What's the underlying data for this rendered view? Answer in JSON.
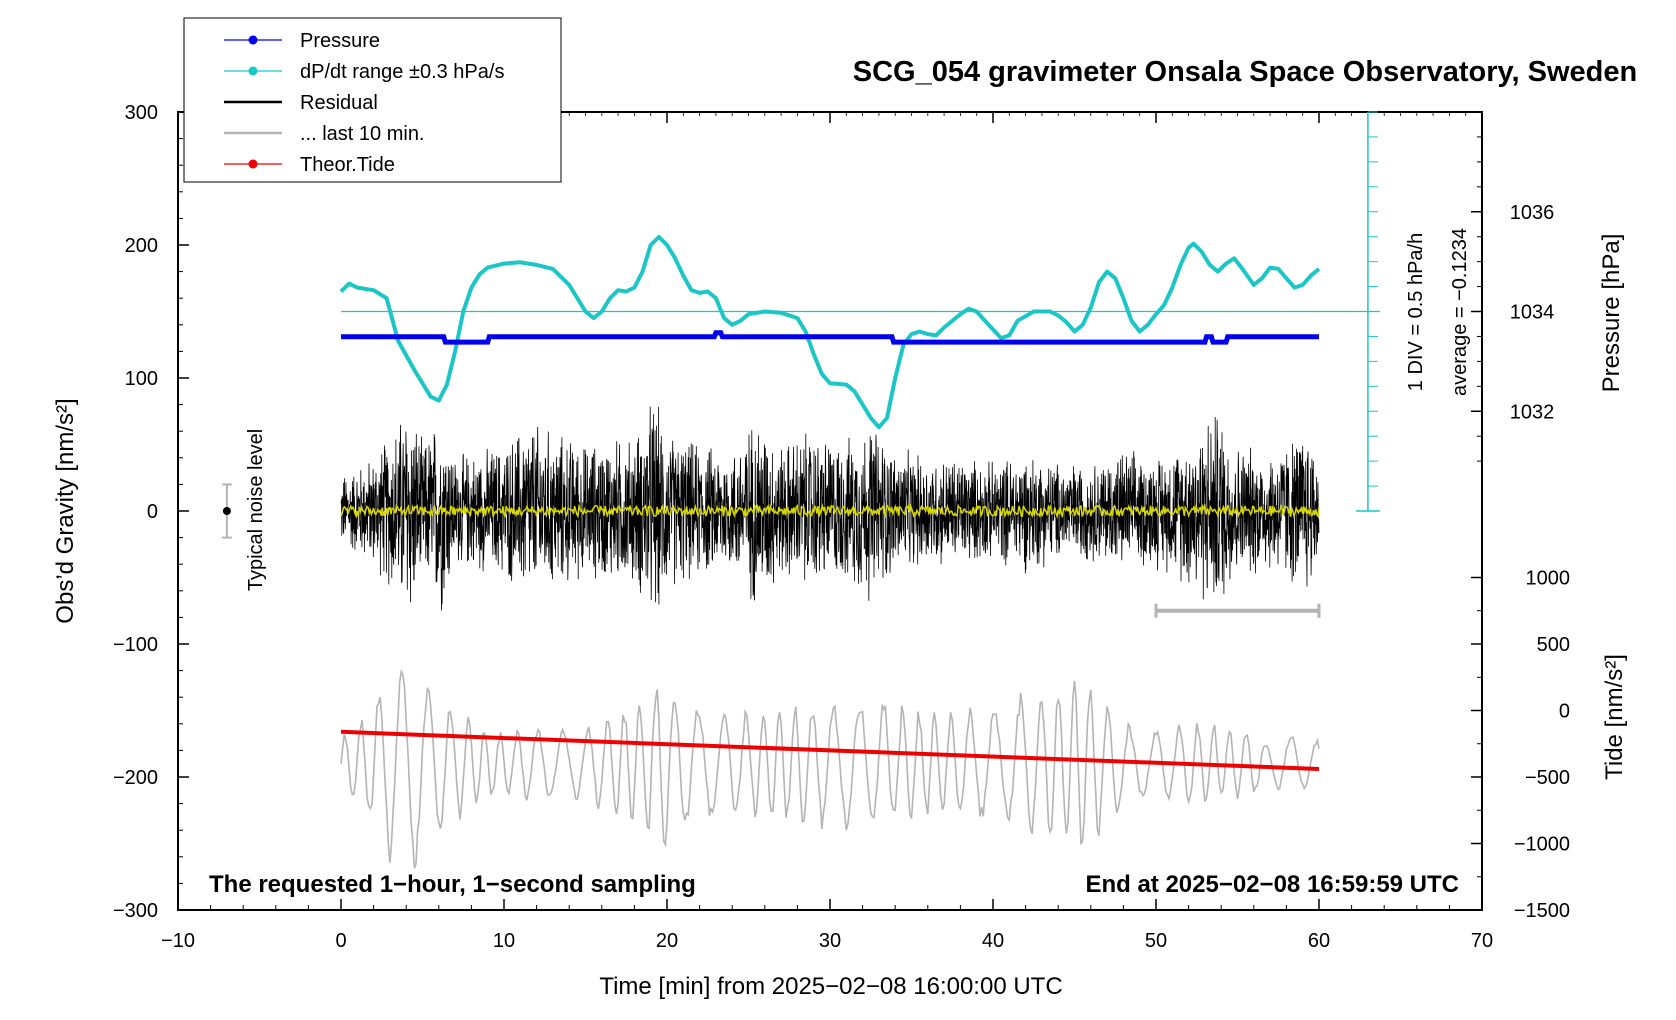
{
  "chart_data": {
    "type": "line",
    "title": "SCG_054 gravimeter Onsala Space Observatory, Sweden",
    "xlabel": "Time [min] from 2025−02−08 16:00:00 UTC",
    "ylabel": "Obs’d Gravity [nm/s²]",
    "ylabel_right_top": "Pressure [hPa]",
    "ylabel_right_bottom": "Tide [nm/s²]",
    "xlim": [
      -10,
      70
    ],
    "ylim": [
      -300,
      300
    ],
    "x_ticks": [
      "−10",
      "0",
      "10",
      "20",
      "30",
      "40",
      "50",
      "60",
      "70"
    ],
    "x_tick_values": [
      -10,
      0,
      10,
      20,
      30,
      40,
      50,
      60,
      70
    ],
    "y_ticks": [
      "300",
      "200",
      "100",
      "0",
      "−100",
      "−200",
      "−300"
    ],
    "y_tick_values": [
      300,
      200,
      100,
      0,
      -100,
      -200,
      -300
    ],
    "pressure_ticks": [
      "1036",
      "1034",
      "1032"
    ],
    "pressure_tick_values": [
      1036,
      1034,
      1032
    ],
    "pressure_scale": {
      "value_at_gravity_150": 1034,
      "gravity_units_per_hpa": 37.5
    },
    "tide_ticks": [
      "1000",
      "500",
      "0",
      "−500",
      "−1000",
      "−1500"
    ],
    "tide_tick_values": [
      1000,
      500,
      0,
      -500,
      -1000,
      -1500
    ],
    "tide_scale": {
      "value_at_gravity_minus_300": -1500,
      "gravity_units_per_tide_unit": 0.1
    },
    "legend": {
      "position": "top-left",
      "entries": [
        {
          "label": "Pressure",
          "color": "#0000ee",
          "marker": true
        },
        {
          "label": "dP/dt range ±0.3 hPa/s",
          "color": "#1cc6c6",
          "marker": true
        },
        {
          "label": "Residual",
          "color": "#000000",
          "marker": false
        },
        {
          "label": "... last 10 min.",
          "color": "#b4b4b4",
          "marker": false
        },
        {
          "label": "Theor.Tide",
          "color": "#ee0000",
          "marker": true
        }
      ]
    },
    "annotations": {
      "noise_label": "Typical noise level",
      "noise_bar": {
        "x": -7,
        "y": 0,
        "half_range": 20
      },
      "dpdt_div_label": "1 DIV = 0.5 hPa/h",
      "dpdt_average_label": "average = −0.1234",
      "dpdt_axis": {
        "x": 63,
        "top": 300,
        "bottom": 0,
        "ref_level": 150
      },
      "footnote_left": "The requested 1−hour, 1−second sampling",
      "footnote_right": "End at 2025−02−08 16:59:59 UTC",
      "last10_bar": {
        "x_start": 50,
        "x_end": 60,
        "y": -75
      }
    },
    "series": [
      {
        "name": "Pressure",
        "color": "#0000ee",
        "units": "gravity-scale",
        "points": [
          [
            0,
            131
          ],
          [
            6.3,
            131
          ],
          [
            6.4,
            127
          ],
          [
            9,
            127
          ],
          [
            9.1,
            131
          ],
          [
            22.9,
            131
          ],
          [
            23,
            134
          ],
          [
            23.3,
            134
          ],
          [
            23.4,
            131
          ],
          [
            33.8,
            131
          ],
          [
            33.9,
            127
          ],
          [
            53,
            127
          ],
          [
            53.1,
            131
          ],
          [
            53.4,
            131
          ],
          [
            53.5,
            127
          ],
          [
            54.3,
            127
          ],
          [
            54.4,
            131
          ],
          [
            60,
            131
          ]
        ]
      },
      {
        "name": "dP/dt",
        "color": "#1cc6c6",
        "units": "gravity-scale",
        "points": [
          [
            0,
            165
          ],
          [
            0.5,
            171
          ],
          [
            1,
            168
          ],
          [
            2,
            166
          ],
          [
            2.8,
            160
          ],
          [
            3.5,
            128
          ],
          [
            4.5,
            106
          ],
          [
            5.5,
            86
          ],
          [
            6,
            83
          ],
          [
            6.5,
            95
          ],
          [
            7,
            120
          ],
          [
            7.5,
            150
          ],
          [
            8,
            168
          ],
          [
            8.5,
            178
          ],
          [
            9,
            183
          ],
          [
            10,
            186
          ],
          [
            11,
            187
          ],
          [
            12,
            185
          ],
          [
            13,
            182
          ],
          [
            14,
            170
          ],
          [
            15,
            150
          ],
          [
            15.5,
            145
          ],
          [
            16,
            150
          ],
          [
            16.5,
            160
          ],
          [
            17,
            166
          ],
          [
            17.5,
            165
          ],
          [
            18,
            168
          ],
          [
            18.5,
            180
          ],
          [
            19,
            200
          ],
          [
            19.5,
            206
          ],
          [
            20,
            200
          ],
          [
            20.5,
            190
          ],
          [
            21,
            177
          ],
          [
            21.5,
            166
          ],
          [
            22,
            164
          ],
          [
            22.5,
            165
          ],
          [
            23,
            160
          ],
          [
            23.5,
            145
          ],
          [
            24,
            140
          ],
          [
            24.5,
            143
          ],
          [
            25,
            148
          ],
          [
            26,
            150
          ],
          [
            27,
            149
          ],
          [
            28,
            145
          ],
          [
            28.5,
            135
          ],
          [
            29,
            118
          ],
          [
            29.5,
            103
          ],
          [
            30,
            96
          ],
          [
            31,
            95
          ],
          [
            31.5,
            90
          ],
          [
            32,
            80
          ],
          [
            32.5,
            70
          ],
          [
            33,
            63
          ],
          [
            33.5,
            70
          ],
          [
            34,
            100
          ],
          [
            34.5,
            125
          ],
          [
            35,
            133
          ],
          [
            35.5,
            135
          ],
          [
            36,
            133
          ],
          [
            36.5,
            132
          ],
          [
            37,
            138
          ],
          [
            38,
            148
          ],
          [
            38.5,
            152
          ],
          [
            39,
            150
          ],
          [
            39.5,
            143
          ],
          [
            40.5,
            130
          ],
          [
            41,
            132
          ],
          [
            41.5,
            143
          ],
          [
            42.5,
            150
          ],
          [
            43.5,
            150
          ],
          [
            44,
            147
          ],
          [
            44.5,
            142
          ],
          [
            45,
            135
          ],
          [
            45.5,
            140
          ],
          [
            46,
            153
          ],
          [
            46.5,
            172
          ],
          [
            47,
            180
          ],
          [
            47.5,
            175
          ],
          [
            48,
            160
          ],
          [
            48.5,
            143
          ],
          [
            49,
            135
          ],
          [
            49.5,
            140
          ],
          [
            50,
            148
          ],
          [
            50.5,
            155
          ],
          [
            51,
            168
          ],
          [
            51.5,
            185
          ],
          [
            52,
            198
          ],
          [
            52.3,
            201
          ],
          [
            52.8,
            195
          ],
          [
            53.3,
            185
          ],
          [
            53.8,
            180
          ],
          [
            54.3,
            186
          ],
          [
            54.8,
            190
          ],
          [
            55.3,
            182
          ],
          [
            56,
            170
          ],
          [
            56.5,
            175
          ],
          [
            57,
            183
          ],
          [
            57.5,
            182
          ],
          [
            58,
            175
          ],
          [
            58.5,
            168
          ],
          [
            59,
            170
          ],
          [
            59.5,
            177
          ],
          [
            60,
            182
          ]
        ]
      },
      {
        "name": "Residual",
        "color": "#000000",
        "units": "nm/s²",
        "sampling_s": 1,
        "envelope": [
          [
            0,
            30
          ],
          [
            2,
            45
          ],
          [
            3.5,
            75
          ],
          [
            4.2,
            95
          ],
          [
            5,
            55
          ],
          [
            6.2,
            85
          ],
          [
            7,
            45
          ],
          [
            8.5,
            50
          ],
          [
            10,
            55
          ],
          [
            11.5,
            75
          ],
          [
            13,
            65
          ],
          [
            15,
            55
          ],
          [
            16.5,
            60
          ],
          [
            18,
            60
          ],
          [
            19.2,
            95
          ],
          [
            20,
            65
          ],
          [
            22,
            55
          ],
          [
            24,
            50
          ],
          [
            25.5,
            80
          ],
          [
            27,
            55
          ],
          [
            28.5,
            65
          ],
          [
            30,
            60
          ],
          [
            31,
            58
          ],
          [
            32.5,
            75
          ],
          [
            34,
            50
          ],
          [
            36,
            45
          ],
          [
            38,
            45
          ],
          [
            40,
            40
          ],
          [
            42,
            50
          ],
          [
            44,
            40
          ],
          [
            46,
            40
          ],
          [
            48,
            50
          ],
          [
            49.5,
            45
          ],
          [
            51,
            50
          ],
          [
            53.7,
            85
          ],
          [
            55,
            55
          ],
          [
            57,
            50
          ],
          [
            59.3,
            70
          ],
          [
            60,
            45
          ]
        ]
      },
      {
        "name": "... last 10 min.",
        "color": "#b4b4b4",
        "units": "nm/s²",
        "center": -190,
        "envelope": [
          [
            0,
            20
          ],
          [
            1.5,
            40
          ],
          [
            3,
            75
          ],
          [
            4.5,
            85
          ],
          [
            6,
            55
          ],
          [
            8,
            35
          ],
          [
            10,
            25
          ],
          [
            12,
            30
          ],
          [
            14,
            25
          ],
          [
            16,
            35
          ],
          [
            18,
            50
          ],
          [
            19.5,
            70
          ],
          [
            21,
            55
          ],
          [
            23,
            45
          ],
          [
            25,
            40
          ],
          [
            27,
            45
          ],
          [
            29,
            50
          ],
          [
            30.5,
            50
          ],
          [
            32,
            55
          ],
          [
            33.5,
            50
          ],
          [
            35,
            45
          ],
          [
            37,
            40
          ],
          [
            39,
            45
          ],
          [
            41,
            50
          ],
          [
            43,
            60
          ],
          [
            45,
            70
          ],
          [
            47,
            50
          ],
          [
            48.5,
            30
          ],
          [
            50,
            25
          ],
          [
            52,
            35
          ],
          [
            54,
            30
          ],
          [
            56,
            25
          ],
          [
            57,
            15
          ],
          [
            58,
            25
          ],
          [
            60,
            20
          ]
        ]
      },
      {
        "name": "Theor.Tide",
        "color": "#ee0000",
        "units": "nm/s²",
        "points": [
          [
            0,
            -166
          ],
          [
            60,
            -194
          ]
        ]
      }
    ]
  }
}
